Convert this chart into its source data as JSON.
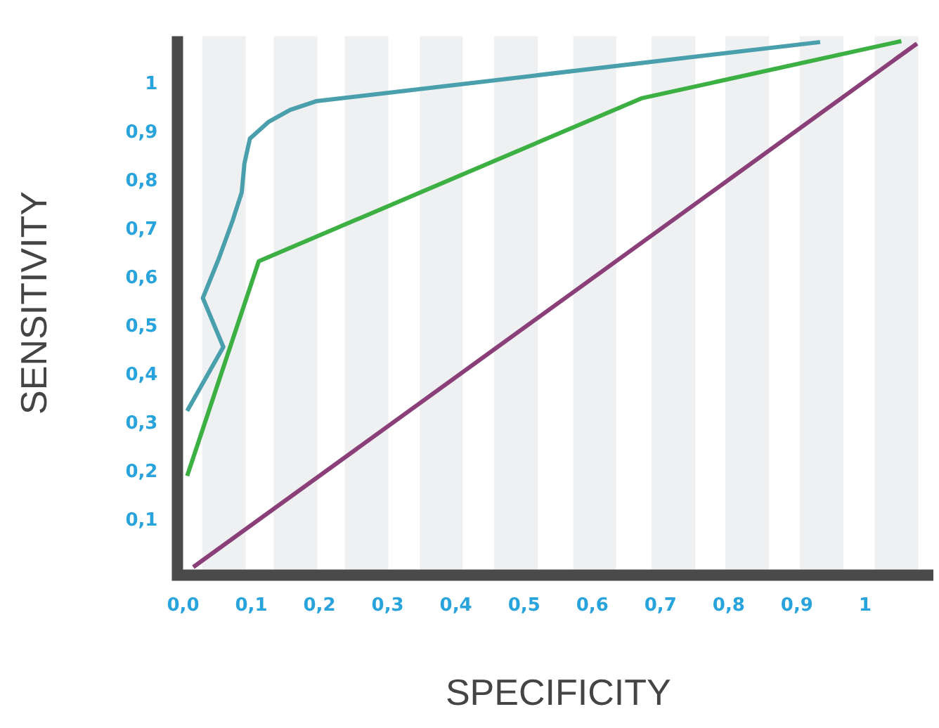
{
  "chart_data": {
    "type": "line",
    "xlabel": "SPECIFICITY",
    "ylabel": "SENSITIVITY",
    "xlim": [
      0,
      1.1
    ],
    "ylim": [
      0,
      1.1
    ],
    "xticks": [
      {
        "value": 0,
        "label": "0,0"
      },
      {
        "value": 0.1,
        "label": "0,1"
      },
      {
        "value": 0.2,
        "label": "0,2"
      },
      {
        "value": 0.3,
        "label": "0,3"
      },
      {
        "value": 0.4,
        "label": "0,4"
      },
      {
        "value": 0.5,
        "label": "0,5"
      },
      {
        "value": 0.6,
        "label": "0,6"
      },
      {
        "value": 0.7,
        "label": "0,7"
      },
      {
        "value": 0.8,
        "label": "0,8"
      },
      {
        "value": 0.9,
        "label": "0,9"
      },
      1
    ],
    "yticks": [
      {
        "value": 0.1,
        "label": "0,1"
      },
      {
        "value": 0.2,
        "label": "0,2"
      },
      {
        "value": 0.3,
        "label": "0,3"
      },
      {
        "value": 0.4,
        "label": "0,4"
      },
      {
        "value": 0.5,
        "label": "0,5"
      },
      {
        "value": 0.6,
        "label": "0,6"
      },
      {
        "value": 0.7,
        "label": "0,7"
      },
      {
        "value": 0.8,
        "label": "0,8"
      },
      {
        "value": 0.9,
        "label": "0,9"
      },
      1
    ],
    "series": [
      {
        "color": "#4a9fac",
        "x": [
          0.006,
          0.059,
          0.029,
          0.052,
          0.072,
          0.086,
          0.09,
          0.098,
          0.125,
          0.157,
          0.195,
          0.934
        ],
        "values": [
          0.327,
          0.459,
          0.56,
          0.64,
          0.717,
          0.778,
          0.838,
          0.889,
          0.923,
          0.948,
          0.966,
          1.088
        ]
      },
      {
        "color": "#3cb043",
        "x": [
          0.006,
          0.111,
          0.672,
          1.053
        ],
        "values": [
          0.193,
          0.636,
          0.972,
          1.09
        ]
      },
      {
        "color": "#8b3f78",
        "x": [
          0.015,
          1.076
        ],
        "values": [
          0.005,
          1.085
        ]
      }
    ],
    "bands": [
      {
        "axis": "x",
        "from": 0.028,
        "to": 0.092,
        "color": "#eff0f2"
      },
      {
        "axis": "x",
        "from": 0.133,
        "to": 0.197,
        "color": "#eff0f2"
      },
      {
        "axis": "x",
        "from": 0.237,
        "to": 0.301,
        "color": "#eff0f2"
      },
      {
        "axis": "x",
        "from": 0.347,
        "to": 0.41,
        "color": "#eff0f2"
      },
      {
        "axis": "x",
        "from": 0.456,
        "to": 0.52,
        "color": "#eff0f2"
      },
      {
        "axis": "x",
        "from": 0.572,
        "to": 0.635,
        "color": "#eff0f2"
      },
      {
        "axis": "x",
        "from": 0.687,
        "to": 0.751,
        "color": "#eff0f2"
      },
      {
        "axis": "x",
        "from": 0.795,
        "to": 0.859,
        "color": "#eff0f2"
      },
      {
        "axis": "x",
        "from": 0.904,
        "to": 0.968,
        "color": "#eff0f2"
      },
      {
        "axis": "x",
        "from": 1.014,
        "to": 1.078,
        "color": "#eff0f2"
      }
    ],
    "grid": false,
    "legend": false,
    "marker": "none",
    "line_style": "solid"
  }
}
